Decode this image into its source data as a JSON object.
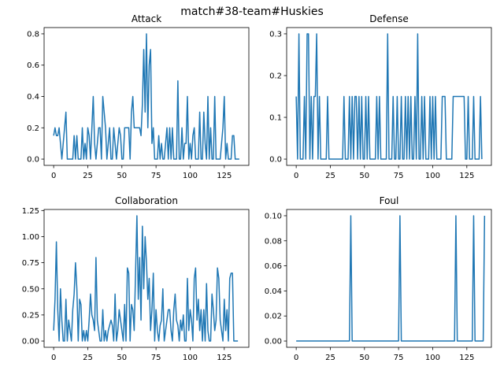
{
  "suptitle": "match#38-team#Huskies",
  "chart_data": [
    {
      "type": "line",
      "title": "Attack",
      "xlabel": "",
      "ylabel": "",
      "xlim": [
        -7,
        143
      ],
      "ylim": [
        -0.04,
        0.84
      ],
      "xticks": [
        0,
        25,
        50,
        75,
        100,
        125
      ],
      "yticks": [
        0.0,
        0.2,
        0.4,
        0.6,
        0.8
      ],
      "ytick_labels": [
        "0.0",
        "0.2",
        "0.4",
        "0.6",
        "0.8"
      ],
      "grid": false,
      "series": [
        {
          "color": "#1f77b4",
          "y": [
            0.15,
            0.2,
            0.15,
            0.15,
            0.2,
            0.1,
            0,
            0.1,
            0.2,
            0.3,
            0,
            0,
            0,
            0,
            0,
            0.15,
            0,
            0.15,
            0,
            0,
            0,
            0.2,
            0,
            0.1,
            0,
            0.2,
            0.15,
            0,
            0.2,
            0.4,
            0.1,
            0,
            0.1,
            0.2,
            0.2,
            0,
            0.4,
            0.3,
            0.2,
            0,
            0.1,
            0.2,
            0,
            0,
            0.2,
            0.1,
            0,
            0.1,
            0.2,
            0.15,
            0,
            0,
            0.2,
            0.2,
            0.2,
            0.2,
            0,
            0.3,
            0.4,
            0.2,
            0.2,
            0.2,
            0.2,
            0.2,
            0.15,
            0.35,
            0.7,
            0.3,
            0.8,
            0.2,
            0.6,
            0.7,
            0.1,
            0.2,
            0,
            0,
            0,
            0.15,
            0,
            0.1,
            0,
            0,
            0.1,
            0.2,
            0,
            0.2,
            0,
            0.2,
            0,
            0,
            0,
            0.5,
            0,
            0,
            0.2,
            0,
            0.1,
            0.1,
            0.4,
            0,
            0.1,
            0,
            0.15,
            0.2,
            0,
            0,
            0,
            0.3,
            0,
            0,
            0.3,
            0.1,
            0,
            0.4,
            0,
            0.2,
            0,
            0,
            0.4,
            0,
            0,
            0,
            0,
            0.1,
            0.2,
            0.4,
            0,
            0.1,
            0,
            0,
            0,
            0.15,
            0.15,
            0,
            0,
            0,
            0
          ]
        }
      ]
    },
    {
      "type": "line",
      "title": "Defense",
      "xlabel": "",
      "ylabel": "",
      "xlim": [
        -7,
        143
      ],
      "ylim": [
        -0.015,
        0.315
      ],
      "xticks": [
        0,
        25,
        50,
        75,
        100,
        125
      ],
      "yticks": [
        0.0,
        0.1,
        0.2,
        0.3
      ],
      "ytick_labels": [
        "0.0",
        "0.1",
        "0.2",
        "0.3"
      ],
      "grid": false,
      "series": [
        {
          "color": "#1f77b4",
          "y": [
            0.15,
            0,
            0.3,
            0,
            0,
            0,
            0.15,
            0,
            0.3,
            0.3,
            0,
            0.15,
            0,
            0.15,
            0.15,
            0.3,
            0,
            0.15,
            0,
            0,
            0,
            0,
            0,
            0.15,
            0,
            0,
            0,
            0,
            0,
            0,
            0,
            0,
            0,
            0,
            0,
            0.15,
            0,
            0,
            0,
            0.15,
            0,
            0.15,
            0,
            0.15,
            0.15,
            0,
            0.15,
            0,
            0.15,
            0,
            0,
            0.15,
            0,
            0.15,
            0,
            0,
            0,
            0,
            0,
            0.15,
            0,
            0.15,
            0,
            0,
            0,
            0,
            0,
            0.3,
            0,
            0,
            0,
            0.15,
            0,
            0,
            0.15,
            0,
            0,
            0.15,
            0,
            0,
            0.15,
            0,
            0.15,
            0,
            0.15,
            0,
            0,
            0.15,
            0,
            0.3,
            0,
            0,
            0.15,
            0,
            0.15,
            0,
            0,
            0,
            0.15,
            0,
            0.15,
            0,
            0.15,
            0,
            0,
            0,
            0,
            0.15,
            0.15,
            0.15,
            0,
            0,
            0,
            0,
            0,
            0.15,
            0.15,
            0.15,
            0.15,
            0.15,
            0.15,
            0.15,
            0.15,
            0.15,
            0,
            0,
            0.15,
            0,
            0,
            0,
            0.15,
            0,
            0,
            0,
            0,
            0.15,
            0
          ]
        }
      ]
    },
    {
      "type": "line",
      "title": "Collaboration",
      "xlabel": "",
      "ylabel": "",
      "xlim": [
        -7,
        143
      ],
      "ylim": [
        -0.06,
        1.26
      ],
      "xticks": [
        0,
        25,
        50,
        75,
        100,
        125
      ],
      "yticks": [
        0.0,
        0.25,
        0.5,
        0.75,
        1.0,
        1.25
      ],
      "ytick_labels": [
        "0.00",
        "0.25",
        "0.50",
        "0.75",
        "1.00",
        "1.25"
      ],
      "grid": false,
      "series": [
        {
          "color": "#1f77b4",
          "y": [
            0.1,
            0.4,
            0.95,
            0.3,
            0,
            0.5,
            0.2,
            0,
            0,
            0.4,
            0,
            0.2,
            0.1,
            0,
            0.3,
            0.45,
            0.75,
            0.5,
            0,
            0.4,
            0.35,
            0,
            0.1,
            0,
            0.1,
            0,
            0.2,
            0.45,
            0.25,
            0.2,
            0.1,
            0.8,
            0.2,
            0.1,
            0,
            0,
            0.3,
            0,
            0.1,
            0,
            0.1,
            0.15,
            0.2,
            0.15,
            0,
            0.45,
            0,
            0.1,
            0.3,
            0.2,
            0.1,
            0,
            0.35,
            0,
            0.7,
            0.65,
            0,
            0.35,
            0.3,
            0.1,
            0.65,
            1.2,
            0.4,
            0.8,
            0.2,
            1.1,
            0.5,
            1.0,
            0.75,
            0.4,
            0.6,
            0.1,
            0.3,
            0.65,
            0,
            0.3,
            0.1,
            0,
            0.15,
            0.2,
            0.5,
            0,
            0.1,
            0.2,
            0.3,
            0.3,
            0.1,
            0,
            0.3,
            0.45,
            0.2,
            0.15,
            0,
            0.2,
            0.1,
            0.25,
            0,
            0,
            0.6,
            0.1,
            0.3,
            0.2,
            0,
            0.6,
            0.7,
            0.2,
            0.4,
            0.1,
            0.3,
            0,
            0.3,
            0,
            0.55,
            0.1,
            0,
            0,
            0.45,
            0.3,
            0.1,
            0.2,
            0.7,
            0.6,
            0.2,
            0.1,
            0,
            0.4,
            0.1,
            0.3,
            0,
            0.6,
            0.65,
            0.65,
            0,
            0,
            0,
            0
          ]
        }
      ]
    },
    {
      "type": "line",
      "title": "Foul",
      "xlabel": "",
      "ylabel": "",
      "xlim": [
        -7,
        143
      ],
      "ylim": [
        -0.005,
        0.105
      ],
      "xticks": [
        0,
        25,
        50,
        75,
        100,
        125
      ],
      "yticks": [
        0.0,
        0.02,
        0.04,
        0.06,
        0.08,
        0.1
      ],
      "ytick_labels": [
        "0.00",
        "0.02",
        "0.04",
        "0.06",
        "0.08",
        "0.10"
      ],
      "grid": false,
      "series": [
        {
          "color": "#1f77b4",
          "y": [
            0,
            0,
            0,
            0,
            0,
            0,
            0,
            0,
            0,
            0,
            0,
            0,
            0,
            0,
            0,
            0,
            0,
            0,
            0,
            0,
            0,
            0,
            0,
            0,
            0,
            0,
            0,
            0,
            0,
            0,
            0,
            0,
            0,
            0,
            0,
            0,
            0,
            0,
            0,
            0,
            0.1,
            0,
            0,
            0,
            0,
            0,
            0,
            0,
            0,
            0,
            0,
            0,
            0,
            0,
            0,
            0,
            0,
            0,
            0,
            0,
            0,
            0,
            0,
            0,
            0,
            0,
            0,
            0,
            0,
            0,
            0,
            0,
            0,
            0,
            0,
            0,
            0.1,
            0,
            0,
            0,
            0,
            0,
            0,
            0,
            0,
            0,
            0,
            0,
            0,
            0,
            0,
            0,
            0,
            0,
            0,
            0,
            0,
            0,
            0,
            0,
            0,
            0,
            0,
            0,
            0,
            0,
            0,
            0,
            0,
            0,
            0,
            0,
            0,
            0,
            0,
            0,
            0,
            0.1,
            0,
            0,
            0,
            0,
            0,
            0,
            0,
            0,
            0,
            0,
            0,
            0,
            0.1,
            0,
            0,
            0,
            0,
            0,
            0,
            0,
            0.1
          ]
        }
      ]
    }
  ]
}
